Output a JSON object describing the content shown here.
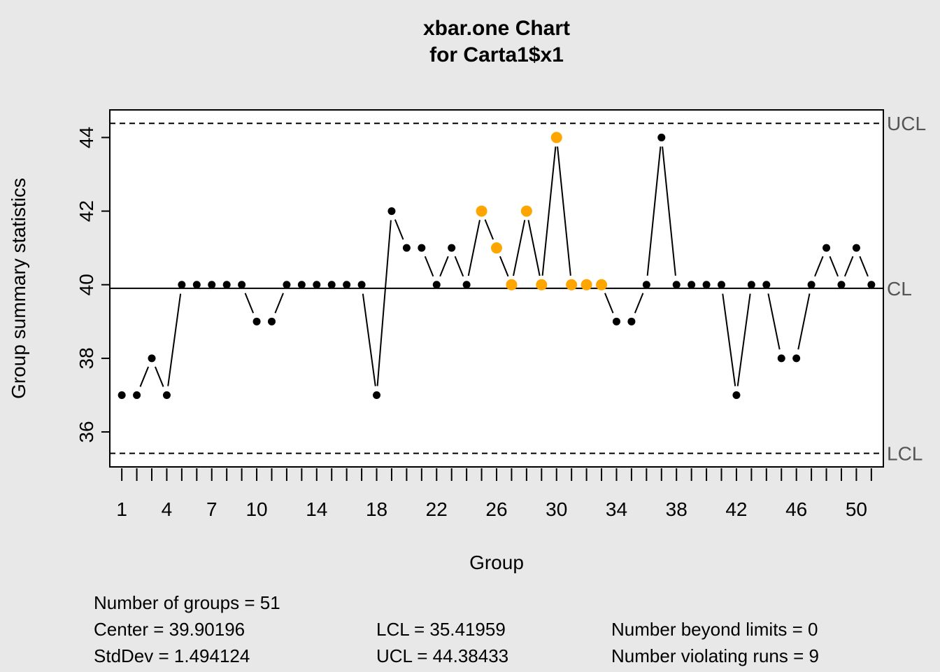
{
  "chart_data": {
    "type": "line",
    "title": "xbar.one Chart",
    "subtitle": "for Carta1$x1",
    "xlabel": "Group",
    "ylabel": "Group summary statistics",
    "x": [
      1,
      2,
      3,
      4,
      5,
      6,
      7,
      8,
      9,
      10,
      11,
      12,
      13,
      14,
      15,
      16,
      17,
      18,
      19,
      20,
      21,
      22,
      23,
      24,
      25,
      26,
      27,
      28,
      29,
      30,
      31,
      32,
      33,
      34,
      35,
      36,
      37,
      38,
      39,
      40,
      41,
      42,
      43,
      44,
      45,
      46,
      47,
      48,
      49,
      50,
      51
    ],
    "values": [
      37,
      37,
      38,
      37,
      40,
      40,
      40,
      40,
      40,
      39,
      39,
      40,
      40,
      40,
      40,
      40,
      40,
      37,
      42,
      41,
      41,
      40,
      41,
      40,
      42,
      41,
      40,
      42,
      40,
      44,
      40,
      40,
      40,
      39,
      39,
      40,
      44,
      40,
      40,
      40,
      40,
      37,
      40,
      40,
      38,
      38,
      40,
      41,
      40,
      41,
      40
    ],
    "violating_runs_groups": [
      25,
      26,
      27,
      28,
      29,
      30,
      31,
      32,
      33
    ],
    "xlim": [
      0.2,
      51.8
    ],
    "ylim": [
      35.05,
      44.75
    ],
    "x_ticks": [
      1,
      4,
      7,
      10,
      14,
      18,
      22,
      26,
      30,
      34,
      38,
      42,
      46,
      50
    ],
    "y_ticks": [
      36,
      38,
      40,
      42,
      44
    ],
    "center": 39.90196,
    "lcl": 35.41959,
    "ucl": 44.38433,
    "limit_labels": {
      "ucl": "UCL",
      "cl": "CL",
      "lcl": "LCL"
    },
    "colors": {
      "normal": "#000000",
      "violating": "#FFA500",
      "background": "#e8e8e8",
      "plot": "#ffffff"
    },
    "grid": false
  },
  "stats": {
    "groups": "Number of groups = 51",
    "center": "Center = 39.90196",
    "stddev": "StdDev = 1.494124",
    "lcl": "LCL = 35.41959",
    "ucl": "UCL = 44.38433",
    "beyond": "Number beyond limits = 0",
    "runs": "Number violating runs = 9"
  }
}
